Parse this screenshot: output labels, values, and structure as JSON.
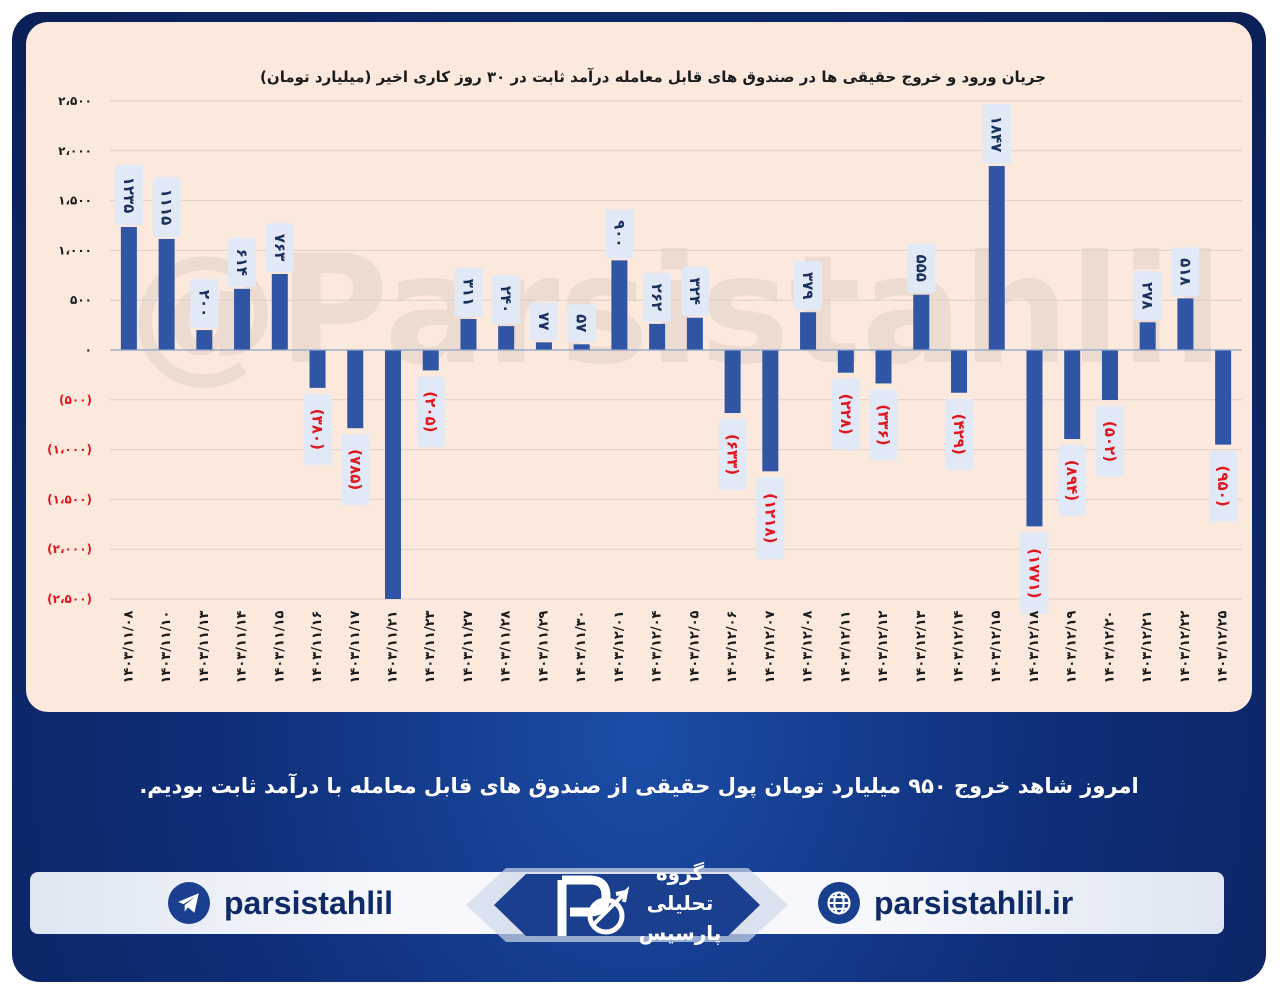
{
  "chart_data": {
    "type": "bar",
    "title": "جریان ورود و خروج حقیقی ها در صندوق های قابل معامله درآمد ثابت در ۳۰ روز کاری اخیر (میلیارد تومان)",
    "categories": [
      "۱۴۰۳/۱۱/۰۸",
      "۱۴۰۳/۱۱/۱۰",
      "۱۴۰۳/۱۱/۱۳",
      "۱۴۰۳/۱۱/۱۴",
      "۱۴۰۳/۱۱/۱۵",
      "۱۴۰۳/۱۱/۱۶",
      "۱۴۰۳/۱۱/۱۷",
      "۱۴۰۳/۱۱/۲۱",
      "۱۴۰۳/۱۱/۲۳",
      "۱۴۰۳/۱۱/۲۷",
      "۱۴۰۳/۱۱/۲۸",
      "۱۴۰۳/۱۱/۲۹",
      "۱۴۰۳/۱۱/۳۰",
      "۱۴۰۳/۱۲/۰۱",
      "۱۴۰۳/۱۲/۰۴",
      "۱۴۰۳/۱۲/۰۵",
      "۱۴۰۳/۱۲/۰۶",
      "۱۴۰۳/۱۲/۰۷",
      "۱۴۰۳/۱۲/۰۸",
      "۱۴۰۳/۱۲/۱۱",
      "۱۴۰۳/۱۲/۱۲",
      "۱۴۰۳/۱۲/۱۳",
      "۱۴۰۳/۱۲/۱۴",
      "۱۴۰۳/۱۲/۱۵",
      "۱۴۰۳/۱۲/۱۸",
      "۱۴۰۳/۱۲/۱۹",
      "۱۴۰۳/۱۲/۲۰",
      "۱۴۰۳/۱۲/۲۱",
      "۱۴۰۳/۱۲/۲۲",
      "۱۴۰۳/۱۲/۲۵"
    ],
    "values": [
      1235,
      1115,
      200,
      614,
      763,
      -380,
      -785,
      -2500,
      -205,
      311,
      240,
      77,
      57,
      900,
      262,
      324,
      -633,
      -1218,
      379,
      -228,
      -336,
      555,
      -429,
      1847,
      -1771,
      -894,
      -502,
      278,
      518,
      -950
    ],
    "data_labels": [
      "۱۲۳۵",
      "۱۱۱۵",
      "۲۰۰",
      "۶۱۴",
      "۷۶۳",
      "(۳۸۰)",
      "(۷۸۵)",
      "",
      "(۲۰۵)",
      "۳۱۱",
      "۲۴۰",
      "۷۷",
      "۵۷",
      "۹۰۰",
      "۲۶۲",
      "۳۲۴",
      "(۶۳۳)",
      "(۱۲۱۸)",
      "۳۷۹",
      "(۲۲۸)",
      "(۳۳۶)",
      "۵۵۵",
      "(۴۲۹)",
      "۱۸۴۷",
      "(۱۷۷۱)",
      "(۸۹۴)",
      "(۵۰۲)",
      "۲۷۸",
      "۵۱۸",
      "(۹۵۰)"
    ],
    "yticks": [
      2500,
      2000,
      1500,
      1000,
      500,
      0,
      -500,
      -1000,
      -1500,
      -2000,
      -2500
    ],
    "ytick_labels": [
      "۲،۵۰۰",
      "۲،۰۰۰",
      "۱،۵۰۰",
      "۱،۰۰۰",
      "۵۰۰",
      "۰",
      "(۵۰۰)",
      "(۱،۰۰۰)",
      "(۱،۵۰۰)",
      "(۲،۰۰۰)",
      "(۲،۵۰۰)"
    ],
    "ylim": [
      -2500,
      2500
    ],
    "grid": true,
    "xlabel": "",
    "ylabel": "",
    "bar_color": "#2f55a4",
    "positive_label_color": "#1b2f5c",
    "negative_label_color": "#e0161e",
    "label_box_color": "#e2e9f6"
  },
  "watermark": "@Parsistahlil",
  "caption": "امروز شاهد خروج ۹۵۰ میلیارد تومان پول حقیقی از صندوق های قابل معامله با درآمد ثابت بودیم.",
  "footer": {
    "telegram_handle": "parsistahlil",
    "website": "parsistahlil.ir",
    "telegram_icon": "telegram-icon",
    "globe_icon": "globe-icon",
    "logo_lines": [
      "گروه",
      "تحلیلی",
      "پارسیس"
    ]
  },
  "colors": {
    "frame": "#0f2f7a",
    "panel": "#fbe9dd"
  }
}
